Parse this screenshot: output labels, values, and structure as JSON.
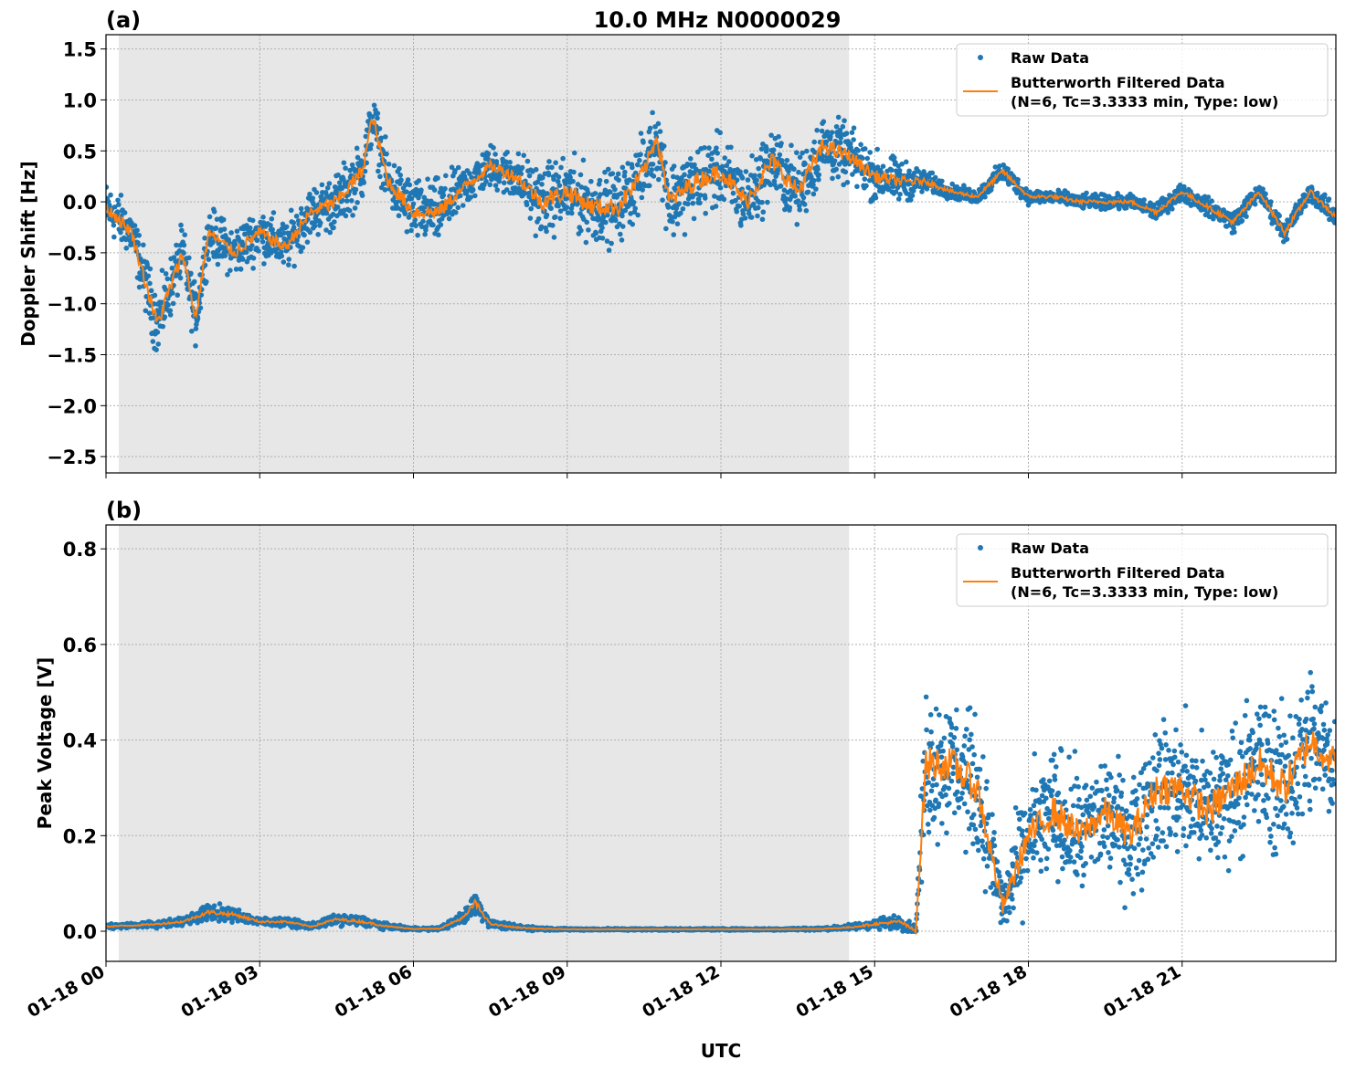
{
  "title": "10.0 MHz N0000029",
  "xlabel": "UTC",
  "x_tick_labels": [
    "01-18 00",
    "01-18 03",
    "01-18 06",
    "01-18 09",
    "01-18 12",
    "01-18 15",
    "01-18 18",
    "01-18 21"
  ],
  "colors": {
    "raw": "#1f77b4",
    "filtered": "#ff7f0e",
    "shade": "#e7e7e7"
  },
  "legend": {
    "raw": "Raw Data",
    "filtered_line1": "Butterworth Filtered Data",
    "filtered_line2": "(N=6, Tc=3.3333 min, Type: low)",
    "placement": "upper-right"
  },
  "chart_data": [
    {
      "type": "scatter+line",
      "panel_label": "(a)",
      "ylabel": "Doppler Shift [Hz]",
      "x_unit": "hours UTC on 01-18",
      "xlim": [
        0,
        24
      ],
      "ylim": [
        -2.66,
        1.64
      ],
      "y_ticks": [
        "1.5",
        "1.0",
        "0.5",
        "0.0",
        "−0.5",
        "−1.0",
        "−1.5",
        "−2.0",
        "−2.5"
      ],
      "y_tick_values": [
        1.5,
        1.0,
        0.5,
        0.0,
        -0.5,
        -1.0,
        -1.5,
        -2.0,
        -2.5
      ],
      "grid": true,
      "shaded_interval": [
        0.25,
        14.5
      ],
      "x": [
        0,
        0.5,
        1,
        1.5,
        1.75,
        2,
        2.5,
        3,
        3.5,
        4,
        4.5,
        5,
        5.2,
        5.5,
        6,
        6.5,
        7,
        7.5,
        8,
        8.5,
        9,
        9.5,
        10,
        10.5,
        10.75,
        11,
        11.5,
        12,
        12.5,
        13,
        13.5,
        14,
        14.5,
        15,
        15.5,
        16,
        16.5,
        17,
        17.5,
        18,
        18.5,
        19,
        19.5,
        20,
        20.5,
        21,
        21.5,
        22,
        22.5,
        23,
        23.5,
        24
      ],
      "filtered": [
        -0.05,
        -0.3,
        -1.2,
        -0.5,
        -1.15,
        -0.3,
        -0.5,
        -0.3,
        -0.45,
        -0.1,
        0.0,
        0.3,
        0.83,
        0.2,
        -0.1,
        -0.1,
        0.15,
        0.35,
        0.25,
        0.0,
        0.1,
        -0.05,
        -0.05,
        0.3,
        0.65,
        0.0,
        0.2,
        0.3,
        0.0,
        0.4,
        0.1,
        0.55,
        0.45,
        0.25,
        0.2,
        0.2,
        0.1,
        0.05,
        0.3,
        0.05,
        0.05,
        0.0,
        0.0,
        0.0,
        -0.1,
        0.1,
        -0.05,
        -0.2,
        0.1,
        -0.3,
        0.1,
        -0.15
      ],
      "raw_spread": [
        0.35,
        0.35,
        0.45,
        0.4,
        0.4,
        0.35,
        0.35,
        0.35,
        0.35,
        0.35,
        0.4,
        0.4,
        0.35,
        0.4,
        0.45,
        0.45,
        0.3,
        0.3,
        0.35,
        0.5,
        0.5,
        0.5,
        0.5,
        0.5,
        0.5,
        0.55,
        0.5,
        0.5,
        0.5,
        0.5,
        0.5,
        0.45,
        0.4,
        0.35,
        0.3,
        0.15,
        0.1,
        0.1,
        0.15,
        0.1,
        0.1,
        0.1,
        0.1,
        0.1,
        0.12,
        0.12,
        0.12,
        0.15,
        0.12,
        0.15,
        0.12,
        0.15
      ]
    },
    {
      "type": "scatter+line",
      "panel_label": "(b)",
      "ylabel": "Peak Voltage [V]",
      "x_unit": "hours UTC on 01-18",
      "xlim": [
        0,
        24
      ],
      "ylim": [
        -0.063,
        0.85
      ],
      "y_ticks": [
        "0.8",
        "0.6",
        "0.4",
        "0.2",
        "0.0"
      ],
      "y_tick_values": [
        0.8,
        0.6,
        0.4,
        0.2,
        0.0
      ],
      "grid": true,
      "shaded_interval": [
        0.25,
        14.5
      ],
      "x": [
        0,
        0.5,
        1,
        1.5,
        2,
        2.5,
        3,
        3.5,
        4,
        4.5,
        5,
        5.5,
        6,
        6.5,
        7,
        7.2,
        7.5,
        8,
        8.5,
        9,
        10,
        11,
        12,
        13,
        14,
        14.5,
        15,
        15.5,
        15.8,
        16,
        16.5,
        17,
        17.5,
        18,
        18.5,
        19,
        19.5,
        20,
        20.5,
        21,
        21.5,
        22,
        22.5,
        23,
        23.5,
        24
      ],
      "filtered": [
        0.01,
        0.012,
        0.015,
        0.02,
        0.04,
        0.035,
        0.02,
        0.02,
        0.01,
        0.025,
        0.02,
        0.01,
        0.005,
        0.005,
        0.03,
        0.06,
        0.015,
        0.008,
        0.005,
        0.004,
        0.004,
        0.004,
        0.004,
        0.004,
        0.005,
        0.008,
        0.015,
        0.02,
        0.0,
        0.35,
        0.35,
        0.3,
        0.05,
        0.2,
        0.25,
        0.2,
        0.25,
        0.2,
        0.3,
        0.3,
        0.25,
        0.3,
        0.35,
        0.3,
        0.4,
        0.35
      ],
      "raw_spread": [
        0.008,
        0.008,
        0.01,
        0.012,
        0.025,
        0.02,
        0.012,
        0.012,
        0.01,
        0.015,
        0.015,
        0.008,
        0.004,
        0.004,
        0.02,
        0.04,
        0.01,
        0.008,
        0.005,
        0.003,
        0.003,
        0.003,
        0.003,
        0.003,
        0.004,
        0.008,
        0.015,
        0.02,
        0.02,
        0.22,
        0.2,
        0.2,
        0.1,
        0.18,
        0.2,
        0.18,
        0.18,
        0.18,
        0.2,
        0.2,
        0.2,
        0.2,
        0.22,
        0.22,
        0.22,
        0.2
      ]
    }
  ]
}
